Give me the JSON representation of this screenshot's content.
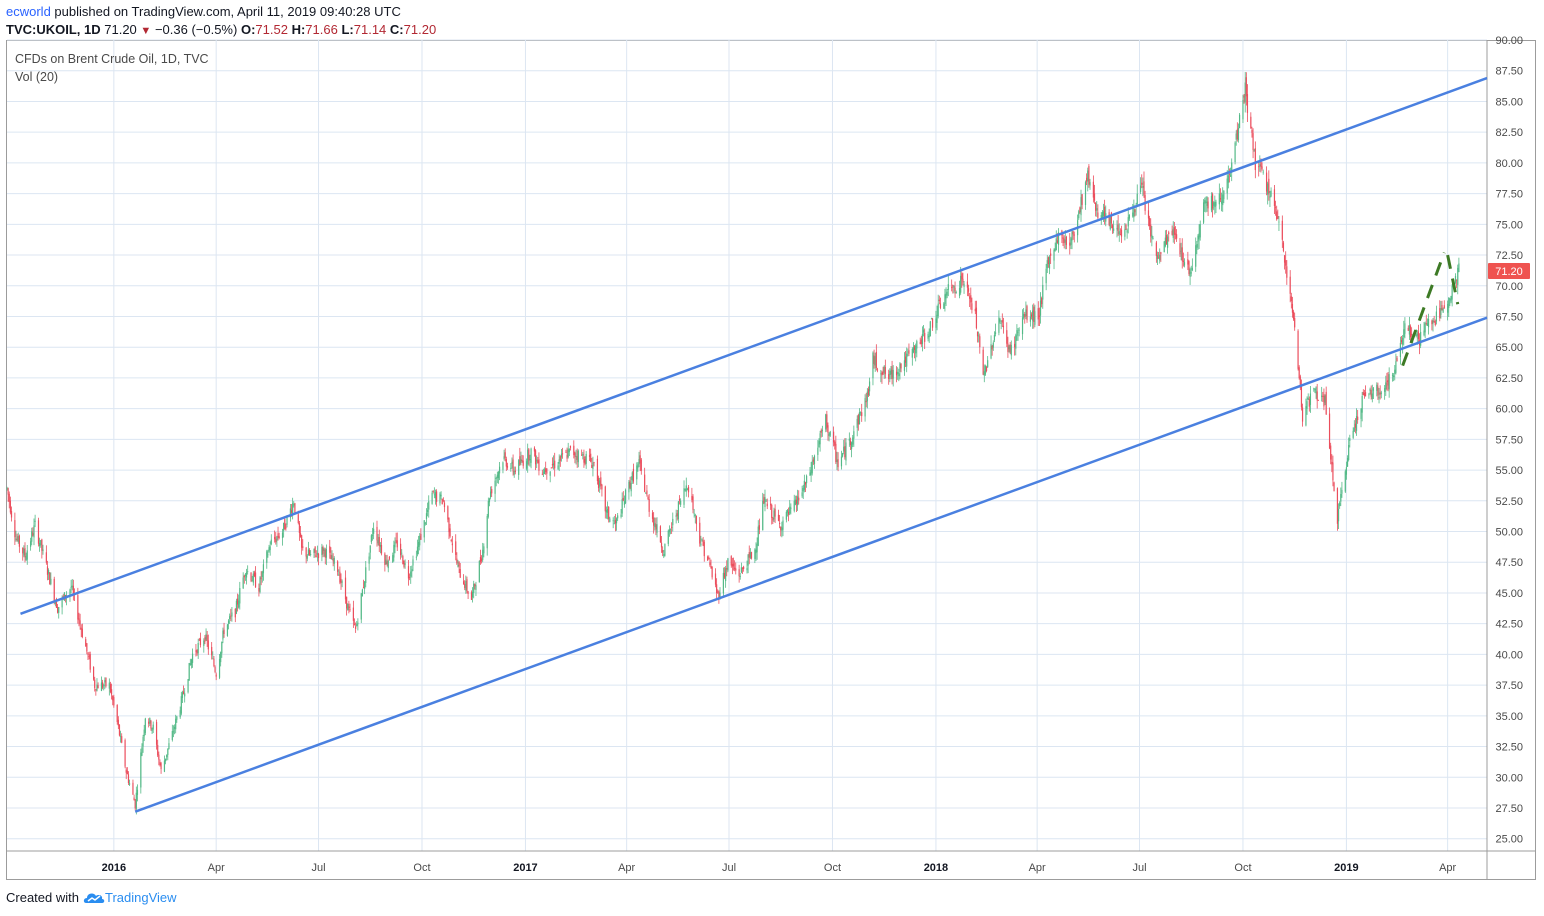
{
  "header": {
    "user": "ecworld",
    "published_text": "published on TradingView.com, April 11, 2019 09:40:28 UTC",
    "symbol": "TVC:UKOIL, 1D",
    "last": "71.20",
    "change": "−0.36 (−0.5%)",
    "open_label": "O:",
    "open": "71.52",
    "high_label": "H:",
    "high": "71.66",
    "low_label": "L:",
    "low": "71.14",
    "close_label": "C:",
    "close": "71.20"
  },
  "legend": {
    "title": "CFDs on Brent Crude Oil, 1D, TVC",
    "volume": "Vol (20)"
  },
  "footer": {
    "created_with": "Created with",
    "brand": "TradingView"
  },
  "colors": {
    "up": "#53b987",
    "down": "#eb4d5c",
    "channel": "#4a80e0",
    "pattern": "#3d7a25",
    "grid": "#dce6f2",
    "price_tag": "#ef5350"
  },
  "chart_data": {
    "type": "line",
    "title": "CFDs on Brent Crude Oil, 1D, TVC",
    "ylim": [
      24,
      90
    ],
    "y_ticks": [
      "25.00",
      "27.50",
      "30.00",
      "32.50",
      "35.00",
      "37.50",
      "40.00",
      "42.50",
      "45.00",
      "47.50",
      "50.00",
      "52.50",
      "55.00",
      "57.50",
      "60.00",
      "62.50",
      "65.00",
      "67.50",
      "70.00",
      "72.50",
      "75.00",
      "77.50",
      "80.00",
      "82.50",
      "85.00",
      "87.50",
      "90.00"
    ],
    "x_ticks": [
      {
        "label": "2016",
        "bold": true
      },
      {
        "label": "Apr",
        "bold": false
      },
      {
        "label": "Jul",
        "bold": false
      },
      {
        "label": "Oct",
        "bold": false
      },
      {
        "label": "2017",
        "bold": true
      },
      {
        "label": "Apr",
        "bold": false
      },
      {
        "label": "Jul",
        "bold": false
      },
      {
        "label": "Oct",
        "bold": false
      },
      {
        "label": "2018",
        "bold": true
      },
      {
        "label": "Apr",
        "bold": false
      },
      {
        "label": "Jul",
        "bold": false
      },
      {
        "label": "Oct",
        "bold": false
      },
      {
        "label": "2019",
        "bold": true
      },
      {
        "label": "Apr",
        "bold": false
      }
    ],
    "x_tick_dates": [
      "2016-01-01",
      "2016-04-01",
      "2016-07-01",
      "2016-10-01",
      "2017-01-01",
      "2017-04-01",
      "2017-07-01",
      "2017-10-01",
      "2018-01-01",
      "2018-04-01",
      "2018-07-01",
      "2018-10-01",
      "2019-01-01",
      "2019-04-01"
    ],
    "x_range": [
      "2015-09-28",
      "2019-05-06"
    ],
    "last_price": "71.20",
    "series": [
      {
        "points": [
          [
            "2015-09-28",
            53.5
          ],
          [
            "2015-10-06",
            49.5
          ],
          [
            "2015-10-14",
            48.0
          ],
          [
            "2015-10-23",
            50.5
          ],
          [
            "2015-11-01",
            47.5
          ],
          [
            "2015-11-12",
            43.8
          ],
          [
            "2015-11-24",
            45.5
          ],
          [
            "2015-12-06",
            41.0
          ],
          [
            "2015-12-15",
            37.5
          ],
          [
            "2015-12-28",
            37.5
          ],
          [
            "2016-01-05",
            34.0
          ],
          [
            "2016-01-12",
            30.5
          ],
          [
            "2016-01-20",
            27.8
          ],
          [
            "2016-01-29",
            35.0
          ],
          [
            "2016-02-05",
            34.0
          ],
          [
            "2016-02-12",
            30.5
          ],
          [
            "2016-02-22",
            33.5
          ],
          [
            "2016-03-02",
            36.5
          ],
          [
            "2016-03-11",
            40.0
          ],
          [
            "2016-03-22",
            41.5
          ],
          [
            "2016-04-01",
            38.5
          ],
          [
            "2016-04-08",
            42.0
          ],
          [
            "2016-04-18",
            43.5
          ],
          [
            "2016-04-27",
            47.0
          ],
          [
            "2016-05-09",
            45.5
          ],
          [
            "2016-05-19",
            49.0
          ],
          [
            "2016-05-30",
            50.0
          ],
          [
            "2016-06-09",
            52.5
          ],
          [
            "2016-06-16",
            48.5
          ],
          [
            "2016-06-24",
            48.0
          ],
          [
            "2016-07-06",
            48.5
          ],
          [
            "2016-07-18",
            47.0
          ],
          [
            "2016-07-28",
            43.5
          ],
          [
            "2016-08-03",
            42.0
          ],
          [
            "2016-08-19",
            50.5
          ],
          [
            "2016-08-30",
            47.5
          ],
          [
            "2016-09-09",
            49.0
          ],
          [
            "2016-09-19",
            46.5
          ],
          [
            "2016-09-28",
            49.0
          ],
          [
            "2016-10-10",
            53.0
          ],
          [
            "2016-10-20",
            52.5
          ],
          [
            "2016-11-02",
            47.0
          ],
          [
            "2016-11-14",
            44.5
          ],
          [
            "2016-11-24",
            48.5
          ],
          [
            "2016-11-30",
            53.0
          ],
          [
            "2016-12-12",
            56.0
          ],
          [
            "2016-12-22",
            55.0
          ],
          [
            "2017-01-06",
            56.5
          ],
          [
            "2017-01-16",
            55.0
          ],
          [
            "2017-01-27",
            55.5
          ],
          [
            "2017-02-10",
            56.5
          ],
          [
            "2017-02-24",
            56.0
          ],
          [
            "2017-03-03",
            55.5
          ],
          [
            "2017-03-14",
            51.5
          ],
          [
            "2017-03-22",
            50.5
          ],
          [
            "2017-04-04",
            54.0
          ],
          [
            "2017-04-12",
            55.5
          ],
          [
            "2017-04-21",
            52.0
          ],
          [
            "2017-05-04",
            48.5
          ],
          [
            "2017-05-15",
            51.5
          ],
          [
            "2017-05-25",
            54.0
          ],
          [
            "2017-06-05",
            49.5
          ],
          [
            "2017-06-13",
            47.5
          ],
          [
            "2017-06-21",
            44.8
          ],
          [
            "2017-06-30",
            47.5
          ],
          [
            "2017-07-10",
            46.5
          ],
          [
            "2017-07-24",
            48.5
          ],
          [
            "2017-08-01",
            52.5
          ],
          [
            "2017-08-15",
            50.5
          ],
          [
            "2017-08-28",
            52.0
          ],
          [
            "2017-09-08",
            54.0
          ],
          [
            "2017-09-25",
            59.0
          ],
          [
            "2017-10-06",
            55.5
          ],
          [
            "2017-10-17",
            57.5
          ],
          [
            "2017-11-01",
            61.0
          ],
          [
            "2017-11-06",
            64.0
          ],
          [
            "2017-11-20",
            62.5
          ],
          [
            "2017-11-30",
            63.5
          ],
          [
            "2017-12-11",
            64.5
          ],
          [
            "2017-12-26",
            66.5
          ],
          [
            "2018-01-11",
            69.5
          ],
          [
            "2018-01-25",
            70.5
          ],
          [
            "2018-02-05",
            67.5
          ],
          [
            "2018-02-12",
            62.5
          ],
          [
            "2018-02-26",
            67.5
          ],
          [
            "2018-03-08",
            64.5
          ],
          [
            "2018-03-20",
            67.5
          ],
          [
            "2018-04-02",
            67.5
          ],
          [
            "2018-04-10",
            71.5
          ],
          [
            "2018-04-19",
            74.0
          ],
          [
            "2018-05-01",
            73.5
          ],
          [
            "2018-05-16",
            79.0
          ],
          [
            "2018-05-25",
            76.0
          ],
          [
            "2018-06-05",
            75.0
          ],
          [
            "2018-06-18",
            74.5
          ],
          [
            "2018-07-03",
            78.0
          ],
          [
            "2018-07-16",
            72.0
          ],
          [
            "2018-07-30",
            74.5
          ],
          [
            "2018-08-15",
            71.0
          ],
          [
            "2018-08-28",
            77.0
          ],
          [
            "2018-09-07",
            76.5
          ],
          [
            "2018-09-20",
            79.0
          ],
          [
            "2018-10-01",
            85.0
          ],
          [
            "2018-10-03",
            86.0
          ],
          [
            "2018-10-12",
            80.0
          ],
          [
            "2018-10-26",
            77.5
          ],
          [
            "2018-11-07",
            72.5
          ],
          [
            "2018-11-16",
            66.5
          ],
          [
            "2018-11-23",
            59.5
          ],
          [
            "2018-12-03",
            61.5
          ],
          [
            "2018-12-13",
            60.5
          ],
          [
            "2018-12-24",
            50.8
          ],
          [
            "2019-01-04",
            57.5
          ],
          [
            "2019-01-16",
            61.0
          ],
          [
            "2019-02-01",
            61.5
          ],
          [
            "2019-02-13",
            63.0
          ],
          [
            "2019-02-22",
            67.0
          ],
          [
            "2019-03-06",
            65.5
          ],
          [
            "2019-03-15",
            67.0
          ],
          [
            "2019-03-25",
            67.5
          ],
          [
            "2019-04-03",
            69.5
          ],
          [
            "2019-04-11",
            71.2
          ]
        ]
      }
    ],
    "annotations": {
      "channel_upper": [
        [
          "2015-10-10",
          43.3
        ],
        [
          "2019-05-06",
          86.9
        ]
      ],
      "channel_lower": [
        [
          "2016-01-20",
          27.2
        ],
        [
          "2019-05-06",
          67.4
        ]
      ],
      "pattern_left": [
        [
          "2019-02-20",
          63.5
        ],
        [
          "2019-03-29",
          72.7
        ]
      ],
      "pattern_right": [
        [
          "2019-04-01",
          72.5
        ],
        [
          "2019-04-10",
          68.5
        ]
      ]
    }
  }
}
